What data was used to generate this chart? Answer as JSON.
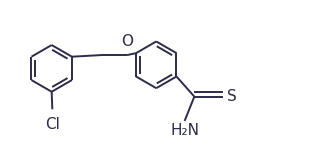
{
  "background_color": "#ffffff",
  "line_color": "#2c2c4a",
  "lw": 1.4,
  "fig_w": 3.11,
  "fig_h": 1.53,
  "dpi": 100,
  "xlim": [
    0,
    9.5
  ],
  "ylim": [
    0,
    4.6
  ],
  "O_label": [
    4.05,
    3.22
  ],
  "S_label": [
    8.55,
    1.55
  ],
  "Cl_label": [
    1.52,
    0.18
  ],
  "H2N_label": [
    6.85,
    0.18
  ],
  "label_fs": 11
}
